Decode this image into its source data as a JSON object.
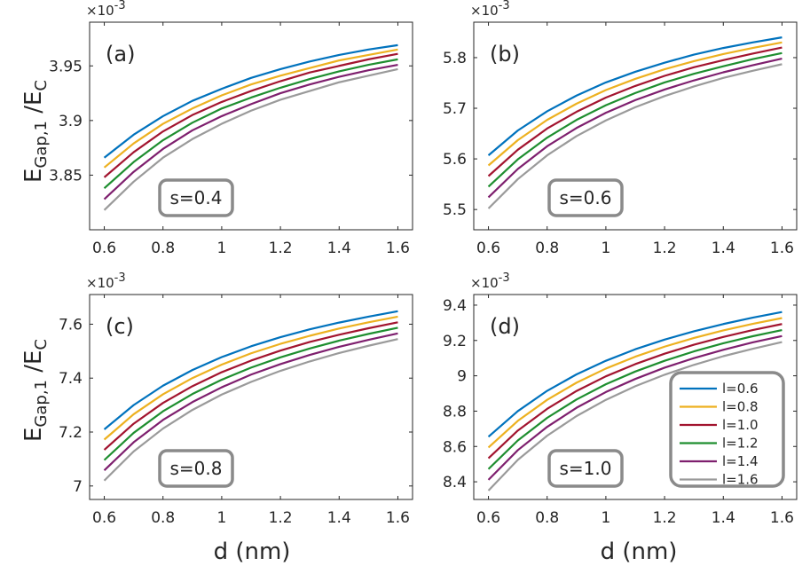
{
  "figure": {
    "ylabel_main": "E",
    "ylabel_sub": "Gap,1",
    "ylabel_div": " /E",
    "ylabel_sub2": "C",
    "xlabel": "d (nm)",
    "exponent_base": "×10",
    "exponent_power": "-3"
  },
  "legend": {
    "entries": [
      "l=0.6",
      "l=0.8",
      "l=1.0",
      "l=1.2",
      "l=1.4",
      "l=1.6"
    ],
    "colors": [
      "#0072BD",
      "#EDB120",
      "#A2142F",
      "#1E8E2F",
      "#7E1F6E",
      "#9A9A9A"
    ]
  },
  "chart_data": [
    {
      "type": "line",
      "panel_label": "(a)",
      "annotation": "s=0.4",
      "xlim": [
        0.55,
        1.65
      ],
      "ylim": [
        3.8,
        3.99
      ],
      "xticks": [
        "0.6",
        "0.8",
        "1",
        "1.2",
        "1.4",
        "1.6"
      ],
      "yticks": [
        "3.85",
        "3.9",
        "3.95"
      ],
      "ytick_values": [
        3.85,
        3.9,
        3.95
      ],
      "y_scale": "×10^-3",
      "x": [
        0.6,
        0.7,
        0.8,
        0.9,
        1.0,
        1.1,
        1.2,
        1.3,
        1.4,
        1.5,
        1.6
      ],
      "series": [
        {
          "name": "l=0.6",
          "values": [
            3.866,
            3.887,
            3.904,
            3.918,
            3.929,
            3.939,
            3.947,
            3.954,
            3.96,
            3.965,
            3.969
          ]
        },
        {
          "name": "l=0.8",
          "values": [
            3.857,
            3.879,
            3.897,
            3.911,
            3.923,
            3.933,
            3.941,
            3.948,
            3.955,
            3.96,
            3.965
          ]
        },
        {
          "name": "l=1.0",
          "values": [
            3.848,
            3.871,
            3.89,
            3.905,
            3.917,
            3.927,
            3.936,
            3.944,
            3.95,
            3.956,
            3.961
          ]
        },
        {
          "name": "l=1.2",
          "values": [
            3.838,
            3.862,
            3.882,
            3.898,
            3.911,
            3.921,
            3.93,
            3.938,
            3.945,
            3.951,
            3.956
          ]
        },
        {
          "name": "l=1.4",
          "values": [
            3.828,
            3.853,
            3.874,
            3.891,
            3.904,
            3.915,
            3.925,
            3.933,
            3.94,
            3.946,
            3.951
          ]
        },
        {
          "name": "l=1.6",
          "values": [
            3.818,
            3.844,
            3.866,
            3.883,
            3.897,
            3.909,
            3.919,
            3.927,
            3.935,
            3.941,
            3.947
          ]
        }
      ]
    },
    {
      "type": "line",
      "panel_label": "(b)",
      "annotation": "s=0.6",
      "xlim": [
        0.55,
        1.65
      ],
      "ylim": [
        5.46,
        5.87
      ],
      "xticks": [
        "0.6",
        "0.8",
        "1",
        "1.2",
        "1.4",
        "1.6"
      ],
      "yticks": [
        "5.5",
        "5.6",
        "5.7",
        "5.8"
      ],
      "ytick_values": [
        5.5,
        5.6,
        5.7,
        5.8
      ],
      "y_scale": "×10^-3",
      "x": [
        0.6,
        0.7,
        0.8,
        0.9,
        1.0,
        1.1,
        1.2,
        1.3,
        1.4,
        1.5,
        1.6
      ],
      "series": [
        {
          "name": "l=0.6",
          "values": [
            5.607,
            5.656,
            5.694,
            5.725,
            5.751,
            5.772,
            5.79,
            5.806,
            5.819,
            5.83,
            5.84
          ]
        },
        {
          "name": "l=0.8",
          "values": [
            5.587,
            5.637,
            5.677,
            5.709,
            5.736,
            5.758,
            5.777,
            5.793,
            5.807,
            5.819,
            5.83
          ]
        },
        {
          "name": "l=1.0",
          "values": [
            5.566,
            5.618,
            5.66,
            5.693,
            5.721,
            5.744,
            5.764,
            5.781,
            5.795,
            5.808,
            5.82
          ]
        },
        {
          "name": "l=1.2",
          "values": [
            5.545,
            5.599,
            5.642,
            5.677,
            5.706,
            5.73,
            5.751,
            5.768,
            5.783,
            5.797,
            5.809
          ]
        },
        {
          "name": "l=1.4",
          "values": [
            5.524,
            5.58,
            5.625,
            5.661,
            5.691,
            5.716,
            5.737,
            5.755,
            5.771,
            5.785,
            5.798
          ]
        },
        {
          "name": "l=1.6",
          "values": [
            5.502,
            5.56,
            5.607,
            5.645,
            5.676,
            5.702,
            5.724,
            5.743,
            5.76,
            5.774,
            5.787
          ]
        }
      ]
    },
    {
      "type": "line",
      "panel_label": "(c)",
      "annotation": "s=0.8",
      "xlim": [
        0.55,
        1.65
      ],
      "ylim": [
        6.95,
        7.71
      ],
      "xticks": [
        "0.6",
        "0.8",
        "1",
        "1.2",
        "1.4",
        "1.6"
      ],
      "yticks": [
        "7",
        "7.2",
        "7.4",
        "7.6"
      ],
      "ytick_values": [
        7.0,
        7.2,
        7.4,
        7.6
      ],
      "y_scale": "×10^-3",
      "x": [
        0.6,
        0.7,
        0.8,
        0.9,
        1.0,
        1.1,
        1.2,
        1.3,
        1.4,
        1.5,
        1.6
      ],
      "series": [
        {
          "name": "l=0.6",
          "values": [
            7.21,
            7.3,
            7.372,
            7.43,
            7.478,
            7.518,
            7.552,
            7.581,
            7.606,
            7.628,
            7.648
          ]
        },
        {
          "name": "l=0.8",
          "values": [
            7.172,
            7.266,
            7.34,
            7.4,
            7.45,
            7.492,
            7.527,
            7.557,
            7.584,
            7.607,
            7.628
          ]
        },
        {
          "name": "l=1.0",
          "values": [
            7.134,
            7.231,
            7.308,
            7.37,
            7.422,
            7.465,
            7.502,
            7.534,
            7.561,
            7.585,
            7.607
          ]
        },
        {
          "name": "l=1.2",
          "values": [
            7.096,
            7.197,
            7.277,
            7.341,
            7.394,
            7.439,
            7.477,
            7.51,
            7.539,
            7.564,
            7.587
          ]
        },
        {
          "name": "l=1.4",
          "values": [
            7.058,
            7.162,
            7.245,
            7.311,
            7.366,
            7.413,
            7.452,
            7.486,
            7.516,
            7.542,
            7.566
          ]
        },
        {
          "name": "l=1.6",
          "values": [
            7.02,
            7.128,
            7.213,
            7.282,
            7.339,
            7.386,
            7.427,
            7.462,
            7.493,
            7.52,
            7.545
          ]
        }
      ]
    },
    {
      "type": "line",
      "panel_label": "(d)",
      "annotation": "s=1.0",
      "xlim": [
        0.55,
        1.65
      ],
      "ylim": [
        8.3,
        9.46
      ],
      "xticks": [
        "0.6",
        "0.8",
        "1",
        "1.2",
        "1.4",
        "1.6"
      ],
      "yticks": [
        "8.4",
        "8.6",
        "8.8",
        "9",
        "9.2",
        "9.4"
      ],
      "ytick_values": [
        8.4,
        8.6,
        8.8,
        9.0,
        9.2,
        9.4
      ],
      "y_scale": "×10^-3",
      "x": [
        0.6,
        0.7,
        0.8,
        0.9,
        1.0,
        1.1,
        1.2,
        1.3,
        1.4,
        1.5,
        1.6
      ],
      "series": [
        {
          "name": "l=0.6",
          "values": [
            8.655,
            8.8,
            8.915,
            9.008,
            9.085,
            9.15,
            9.205,
            9.252,
            9.293,
            9.329,
            9.361
          ]
        },
        {
          "name": "l=0.8",
          "values": [
            8.594,
            8.745,
            8.864,
            8.961,
            9.041,
            9.108,
            9.165,
            9.214,
            9.257,
            9.294,
            9.327
          ]
        },
        {
          "name": "l=1.0",
          "values": [
            8.533,
            8.69,
            8.813,
            8.914,
            8.997,
            9.066,
            9.125,
            9.176,
            9.22,
            9.259,
            9.293
          ]
        },
        {
          "name": "l=1.2",
          "values": [
            8.472,
            8.634,
            8.762,
            8.866,
            8.952,
            9.024,
            9.085,
            9.138,
            9.184,
            9.224,
            9.259
          ]
        },
        {
          "name": "l=1.4",
          "values": [
            8.411,
            8.579,
            8.711,
            8.819,
            8.908,
            8.982,
            9.046,
            9.1,
            9.147,
            9.189,
            9.225
          ]
        },
        {
          "name": "l=1.6",
          "values": [
            8.35,
            8.524,
            8.661,
            8.772,
            8.864,
            8.941,
            9.006,
            9.062,
            9.111,
            9.153,
            9.191
          ]
        }
      ]
    }
  ]
}
